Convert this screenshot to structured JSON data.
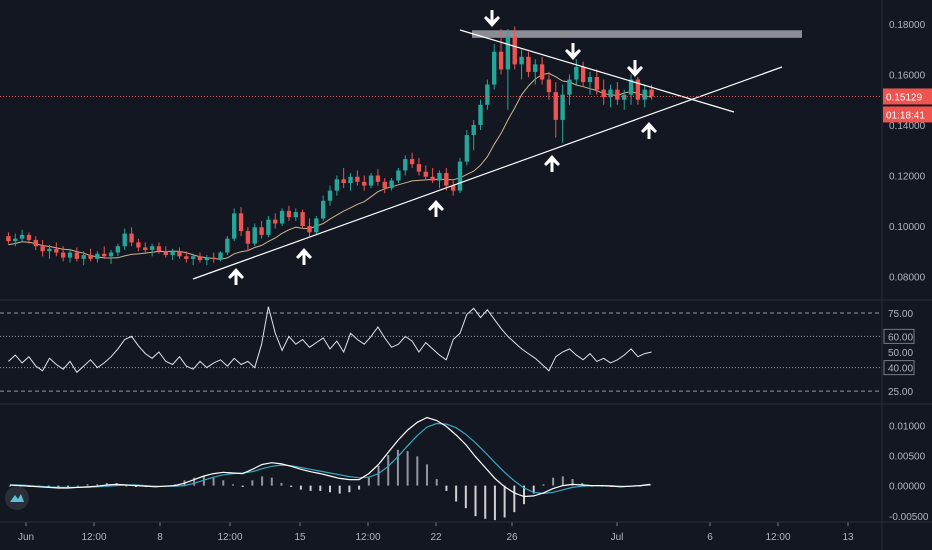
{
  "chart_data": [
    {
      "type": "candlestick",
      "role": "price",
      "price_axis_ticks": [
        "0.18000",
        "0.16000",
        "0.14000",
        "0.12000",
        "0.10000",
        "0.08000"
      ],
      "price_ylim": [
        0.0715,
        0.1875
      ],
      "current_price": "0.15129",
      "countdown": "01:18:41",
      "moving_average": "tan line under price",
      "trendlines": [
        {
          "name": "descending resistance",
          "from": [
            "Jun 24 12:00",
            0.178
          ],
          "to": [
            "Jul 3 12:00",
            0.149
          ]
        },
        {
          "name": "ascending support",
          "from": [
            "Jun 9 18:00",
            0.0805
          ],
          "to": [
            "Jul 5 18:00",
            0.164
          ]
        }
      ],
      "resistance_zone": [
        0.1745,
        0.1775
      ],
      "candles": [
        [
          0.096,
          0.0975,
          0.093,
          0.094
        ],
        [
          0.094,
          0.097,
          0.092,
          0.095
        ],
        [
          0.095,
          0.0985,
          0.0935,
          0.0965
        ],
        [
          0.0965,
          0.0975,
          0.093,
          0.0945
        ],
        [
          0.0945,
          0.096,
          0.0905,
          0.092
        ],
        [
          0.092,
          0.0945,
          0.088,
          0.09
        ],
        [
          0.09,
          0.0925,
          0.087,
          0.091
        ],
        [
          0.091,
          0.0935,
          0.088,
          0.0895
        ],
        [
          0.0895,
          0.092,
          0.086,
          0.0875
        ],
        [
          0.0875,
          0.091,
          0.0855,
          0.0895
        ],
        [
          0.0895,
          0.0915,
          0.086,
          0.087
        ],
        [
          0.087,
          0.09,
          0.0845,
          0.0885
        ],
        [
          0.0885,
          0.091,
          0.086,
          0.087
        ],
        [
          0.087,
          0.09,
          0.0855,
          0.089
        ],
        [
          0.089,
          0.092,
          0.087,
          0.088
        ],
        [
          0.088,
          0.0905,
          0.085,
          0.0895
        ],
        [
          0.0895,
          0.093,
          0.088,
          0.092
        ],
        [
          0.092,
          0.099,
          0.0905,
          0.097
        ],
        [
          0.097,
          0.0995,
          0.092,
          0.0935
        ],
        [
          0.0935,
          0.095,
          0.09,
          0.0915
        ],
        [
          0.0915,
          0.0935,
          0.089,
          0.0905
        ],
        [
          0.0905,
          0.093,
          0.088,
          0.092
        ],
        [
          0.092,
          0.0935,
          0.089,
          0.09
        ],
        [
          0.09,
          0.092,
          0.0875,
          0.0885
        ],
        [
          0.0885,
          0.091,
          0.0865,
          0.09
        ],
        [
          0.09,
          0.0915,
          0.087,
          0.088
        ],
        [
          0.088,
          0.09,
          0.0855,
          0.087
        ],
        [
          0.087,
          0.089,
          0.0845,
          0.088
        ],
        [
          0.088,
          0.0895,
          0.0855,
          0.0865
        ],
        [
          0.0865,
          0.0885,
          0.0845,
          0.0875
        ],
        [
          0.0875,
          0.0895,
          0.0855,
          0.087
        ],
        [
          0.087,
          0.09,
          0.086,
          0.0895
        ],
        [
          0.0895,
          0.096,
          0.0885,
          0.095
        ],
        [
          0.095,
          0.107,
          0.094,
          0.105
        ],
        [
          0.105,
          0.1075,
          0.096,
          0.098
        ],
        [
          0.098,
          0.0995,
          0.09,
          0.093
        ],
        [
          0.093,
          0.101,
          0.092,
          0.0995
        ],
        [
          0.0995,
          0.102,
          0.095,
          0.0965
        ],
        [
          0.0965,
          0.104,
          0.0955,
          0.1025
        ],
        [
          0.1025,
          0.105,
          0.099,
          0.101
        ],
        [
          0.101,
          0.107,
          0.1,
          0.106
        ],
        [
          0.106,
          0.108,
          0.102,
          0.1035
        ],
        [
          0.1035,
          0.107,
          0.102,
          0.1055
        ],
        [
          0.1055,
          0.1065,
          0.099,
          0.1
        ],
        [
          0.1,
          0.103,
          0.096,
          0.0975
        ],
        [
          0.0975,
          0.104,
          0.0965,
          0.103
        ],
        [
          0.103,
          0.112,
          0.102,
          0.11
        ],
        [
          0.11,
          0.116,
          0.108,
          0.114
        ],
        [
          0.114,
          0.12,
          0.112,
          0.1185
        ],
        [
          0.1185,
          0.123,
          0.115,
          0.117
        ],
        [
          0.117,
          0.121,
          0.114,
          0.1195
        ],
        [
          0.1195,
          0.122,
          0.116,
          0.1175
        ],
        [
          0.1175,
          0.12,
          0.114,
          0.116
        ],
        [
          0.116,
          0.121,
          0.115,
          0.12
        ],
        [
          0.12,
          0.1225,
          0.116,
          0.1175
        ],
        [
          0.1175,
          0.119,
          0.113,
          0.115
        ],
        [
          0.115,
          0.119,
          0.114,
          0.118
        ],
        [
          0.118,
          0.123,
          0.117,
          0.122
        ],
        [
          0.122,
          0.128,
          0.12,
          0.1265
        ],
        [
          0.1265,
          0.129,
          0.123,
          0.1245
        ],
        [
          0.1245,
          0.127,
          0.12,
          0.1215
        ],
        [
          0.1215,
          0.124,
          0.118,
          0.1195
        ],
        [
          0.1195,
          0.123,
          0.117,
          0.118
        ],
        [
          0.118,
          0.122,
          0.115,
          0.121
        ],
        [
          0.121,
          0.123,
          0.114,
          0.116
        ],
        [
          0.116,
          0.118,
          0.112,
          0.114
        ],
        [
          0.114,
          0.127,
          0.113,
          0.1255
        ],
        [
          0.1255,
          0.138,
          0.124,
          0.136
        ],
        [
          0.136,
          0.142,
          0.13,
          0.14
        ],
        [
          0.14,
          0.15,
          0.138,
          0.148
        ],
        [
          0.148,
          0.158,
          0.146,
          0.156
        ],
        [
          0.156,
          0.172,
          0.154,
          0.169
        ],
        [
          0.169,
          0.178,
          0.16,
          0.162
        ],
        [
          0.162,
          0.178,
          0.146,
          0.175
        ],
        [
          0.175,
          0.179,
          0.162,
          0.164
        ],
        [
          0.164,
          0.17,
          0.158,
          0.167
        ],
        [
          0.167,
          0.169,
          0.159,
          0.161
        ],
        [
          0.161,
          0.166,
          0.156,
          0.164
        ],
        [
          0.164,
          0.167,
          0.156,
          0.158
        ],
        [
          0.158,
          0.161,
          0.15,
          0.153
        ],
        [
          0.153,
          0.157,
          0.135,
          0.142
        ],
        [
          0.142,
          0.156,
          0.133,
          0.152
        ],
        [
          0.152,
          0.16,
          0.148,
          0.158
        ],
        [
          0.158,
          0.166,
          0.156,
          0.163
        ],
        [
          0.163,
          0.165,
          0.155,
          0.157
        ],
        [
          0.157,
          0.161,
          0.152,
          0.159
        ],
        [
          0.159,
          0.162,
          0.152,
          0.154
        ],
        [
          0.154,
          0.158,
          0.148,
          0.151
        ],
        [
          0.151,
          0.156,
          0.147,
          0.154
        ],
        [
          0.154,
          0.157,
          0.148,
          0.15
        ],
        [
          0.15,
          0.154,
          0.146,
          0.152
        ],
        [
          0.152,
          0.16,
          0.148,
          0.158
        ],
        [
          0.158,
          0.159,
          0.148,
          0.15
        ],
        [
          0.15,
          0.156,
          0.147,
          0.154
        ],
        [
          0.154,
          0.156,
          0.15,
          0.1513
        ]
      ]
    },
    {
      "type": "line",
      "role": "rsi",
      "levels": [
        "75.00",
        "60.00",
        "50.00",
        "40.00",
        "25.00"
      ],
      "ylim": [
        18,
        82
      ],
      "values": [
        44,
        48,
        43,
        47,
        41,
        38,
        46,
        42,
        39,
        44,
        37,
        41,
        45,
        40,
        43,
        47,
        52,
        58,
        60,
        54,
        49,
        46,
        50,
        44,
        42,
        47,
        41,
        39,
        44,
        40,
        43,
        45,
        41,
        46,
        42,
        44,
        40,
        55,
        79,
        62,
        51,
        60,
        55,
        58,
        53,
        56,
        59,
        52,
        57,
        50,
        62,
        58,
        55,
        60,
        66,
        59,
        53,
        55,
        60,
        57,
        50,
        56,
        52,
        48,
        45,
        58,
        62,
        74,
        78,
        72,
        77,
        71,
        65,
        60,
        56,
        52,
        49,
        46,
        42,
        38,
        47,
        50,
        52,
        48,
        45,
        49,
        44,
        46,
        43,
        45,
        48,
        52,
        47,
        49,
        50
      ]
    },
    {
      "type": "line",
      "role": "macd",
      "axis_ticks": [
        "0.01000",
        "0.00500",
        "0.00000",
        "-0.00500"
      ],
      "ylim": [
        -0.0057,
        0.0132
      ],
      "macd": [
        0.0001,
        0.0,
        -0.0001,
        -0.0002,
        -0.0003,
        -0.0004,
        -0.0004,
        -0.0003,
        -0.0002,
        -0.0001,
        0.0001,
        0.0002,
        0.0001,
        0.0,
        -0.0001,
        -0.0002,
        -0.0001,
        0.0,
        0.0004,
        0.001,
        0.0016,
        0.002,
        0.0022,
        0.0021,
        0.002,
        0.0027,
        0.0035,
        0.0038,
        0.0036,
        0.0032,
        0.0027,
        0.0023,
        0.002,
        0.0016,
        0.0012,
        0.001,
        0.001,
        0.002,
        0.0035,
        0.0055,
        0.0075,
        0.0092,
        0.0105,
        0.0113,
        0.0108,
        0.0098,
        0.0084,
        0.0068,
        0.0048,
        0.003,
        0.0012,
        -0.0002,
        -0.0012,
        -0.0018,
        -0.0017,
        -0.0012,
        -0.0005,
        0.0,
        0.0002,
        0.0001,
        0.0,
        0.0,
        -0.0001,
        -0.0002,
        -0.0001,
        0.0,
        0.0002
      ],
      "signal": [
        0.0001,
        0.0001,
        0.0,
        -0.0001,
        -0.0002,
        -0.0003,
        -0.0003,
        -0.0003,
        -0.0003,
        -0.0002,
        -0.0001,
        0.0,
        0.0001,
        0.0001,
        0.0,
        -0.0001,
        -0.0001,
        -0.0001,
        0.0,
        0.0004,
        0.0009,
        0.0014,
        0.0018,
        0.002,
        0.0021,
        0.0023,
        0.0028,
        0.0032,
        0.0034,
        0.0033,
        0.003,
        0.0027,
        0.0024,
        0.0021,
        0.0018,
        0.0015,
        0.0013,
        0.0014,
        0.002,
        0.0032,
        0.0048,
        0.0066,
        0.0083,
        0.0097,
        0.0103,
        0.0102,
        0.0096,
        0.0085,
        0.0071,
        0.0055,
        0.0038,
        0.0022,
        0.0008,
        -0.0004,
        -0.0011,
        -0.0013,
        -0.0011,
        -0.0007,
        -0.0003,
        -0.0001,
        0.0,
        0.0,
        0.0,
        -0.0001,
        -0.0001,
        0.0,
        0.0001
      ]
    }
  ],
  "time_axis": {
    "labels": [
      "Jun",
      "12:00",
      "8",
      "12:00",
      "15",
      "12:00",
      "22",
      "26",
      "Jul",
      "6",
      "12:00",
      "13"
    ]
  },
  "colors": {
    "background": "#131722",
    "up": "#26a69a",
    "down": "#ef5350",
    "ma": "#d1b48b",
    "rsi": "#e0e3eb",
    "macd": "#ffffff",
    "signal": "#3aa8c4",
    "price_line": "#ef5350",
    "label_bg": "#ef5350"
  },
  "icons": [
    "arrow-up-icon",
    "arrow-down-icon",
    "tradingview-logo-icon"
  ]
}
